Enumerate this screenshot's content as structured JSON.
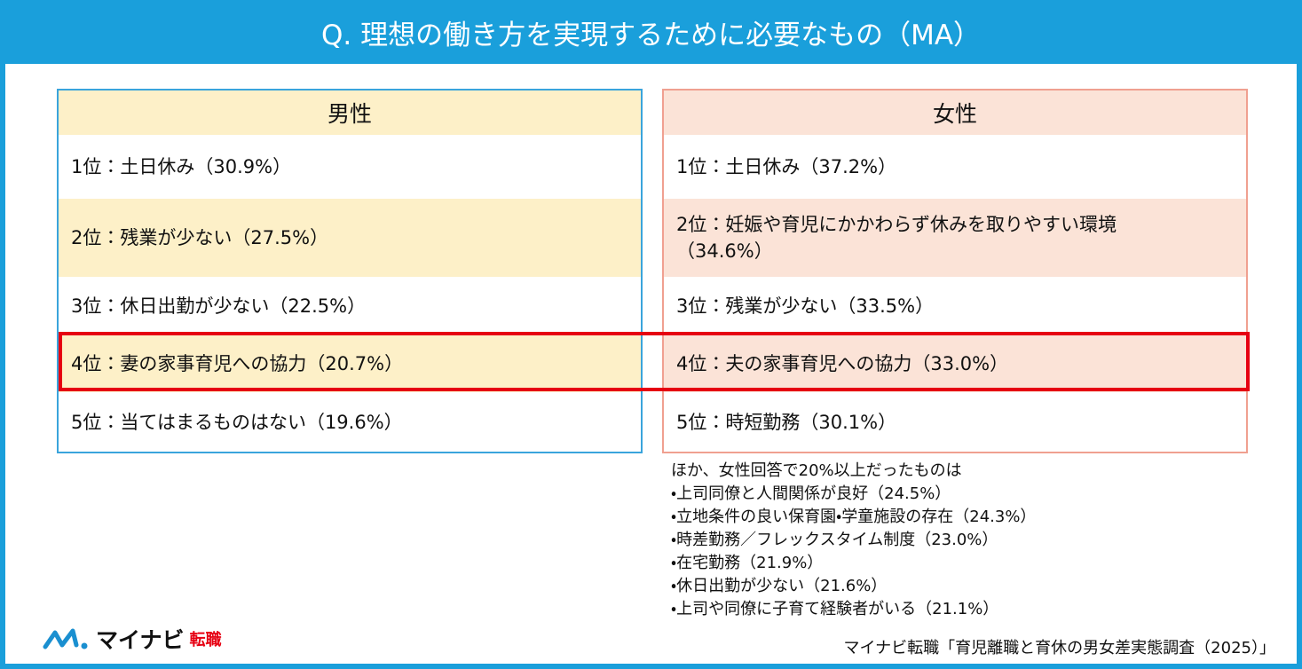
{
  "title": "Q. 理想の働き方を実現するために必要なもの（MA）",
  "tables": [
    {
      "header": "男性",
      "rows": [
        "1位：土日休み（30.9%）",
        "2位：残業が少ない（27.5%）",
        "3位：休日出勤が少ない（22.5%）",
        "4位：妻の家事育児への協力（20.7%）",
        "5位：当てはまるものはない（19.6%）"
      ]
    },
    {
      "header": "女性",
      "rows": [
        "1位：土日休み（37.2%）",
        "2位：妊娠や育児にかかわらず休みを取りやすい環境（34.6%）",
        "3位：残業が少ない（33.5%）",
        "4位：夫の家事育児への協力（33.0%）",
        "5位：時短勤務（30.1%）"
      ]
    }
  ],
  "notes": {
    "heading": "ほか、女性回答で20%以上だったものは",
    "items": [
      "・上司同僚と人間関係が良好（24.5%）",
      "・立地条件の良い保育園・学童施設の存在（24.3%）",
      "・時差勤務／フレックスタイム制度（23.0%）",
      "・在宅勤務（21.9%）",
      "・休日出勤が少ない（21.6%）",
      "・上司や同僚に子育て経験者がいる（21.1%）"
    ]
  },
  "logo": {
    "name": "マイナビ",
    "sub": "転職"
  },
  "source": "マイナビ転職「育児離職と育休の男女差実態調査（2025）」"
}
